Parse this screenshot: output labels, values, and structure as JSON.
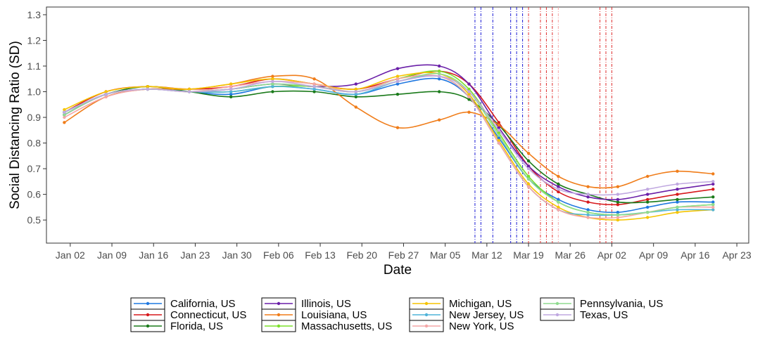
{
  "chart_data": {
    "type": "line",
    "title": "",
    "xlabel": "Date",
    "ylabel": "Social Distancing Ratio (SD)",
    "x_ticks": [
      "Jan 02",
      "Jan 09",
      "Jan 16",
      "Jan 23",
      "Jan 30",
      "Feb 06",
      "Feb 13",
      "Feb 20",
      "Feb 27",
      "Mar 05",
      "Mar 12",
      "Mar 19",
      "Mar 26",
      "Apr 02",
      "Apr 09",
      "Apr 16",
      "Apr 23"
    ],
    "y_ticks": [
      0.5,
      0.6,
      0.7,
      0.8,
      0.9,
      1.0,
      1.1,
      1.2,
      1.3
    ],
    "xlim": [
      "2019-12-29",
      "2020-04-25"
    ],
    "ylim": [
      0.41,
      1.33
    ],
    "grid": false,
    "legend_position": "bottom",
    "series": [
      {
        "name": "California, US",
        "color": "#1f78e0",
        "x": [
          "2020-01-01",
          "2020-01-08",
          "2020-01-15",
          "2020-01-22",
          "2020-01-29",
          "2020-02-05",
          "2020-02-12",
          "2020-02-19",
          "2020-02-26",
          "2020-03-04",
          "2020-03-09",
          "2020-03-14",
          "2020-03-19",
          "2020-03-24",
          "2020-03-29",
          "2020-04-03",
          "2020-04-08",
          "2020-04-13",
          "2020-04-19"
        ],
        "y": [
          0.91,
          0.99,
          1.01,
          1.0,
          0.99,
          1.02,
          1.01,
          0.99,
          1.03,
          1.05,
          0.98,
          0.82,
          0.66,
          0.58,
          0.54,
          0.53,
          0.55,
          0.57,
          0.57
        ]
      },
      {
        "name": "Connecticut, US",
        "color": "#d7191c",
        "x": [
          "2020-01-01",
          "2020-01-08",
          "2020-01-15",
          "2020-01-22",
          "2020-01-29",
          "2020-02-05",
          "2020-02-12",
          "2020-02-19",
          "2020-02-26",
          "2020-03-04",
          "2020-03-09",
          "2020-03-14",
          "2020-03-19",
          "2020-03-24",
          "2020-03-29",
          "2020-04-03",
          "2020-04-08",
          "2020-04-13",
          "2020-04-19"
        ],
        "y": [
          0.92,
          1.0,
          1.02,
          1.01,
          1.02,
          1.05,
          1.03,
          1.01,
          1.05,
          1.08,
          1.03,
          0.88,
          0.71,
          0.61,
          0.57,
          0.56,
          0.58,
          0.6,
          0.62
        ]
      },
      {
        "name": "Florida, US",
        "color": "#1a7a1a",
        "x": [
          "2020-01-01",
          "2020-01-08",
          "2020-01-15",
          "2020-01-22",
          "2020-01-29",
          "2020-02-05",
          "2020-02-12",
          "2020-02-19",
          "2020-02-26",
          "2020-03-04",
          "2020-03-09",
          "2020-03-14",
          "2020-03-19",
          "2020-03-24",
          "2020-03-29",
          "2020-04-03",
          "2020-04-08",
          "2020-04-13",
          "2020-04-19"
        ],
        "y": [
          0.92,
          0.99,
          1.02,
          1.0,
          0.98,
          1.0,
          1.0,
          0.98,
          0.99,
          1.0,
          0.97,
          0.87,
          0.73,
          0.64,
          0.6,
          0.57,
          0.57,
          0.58,
          0.59
        ]
      },
      {
        "name": "Illinois, US",
        "color": "#6a1fa8",
        "x": [
          "2020-01-01",
          "2020-01-08",
          "2020-01-15",
          "2020-01-22",
          "2020-01-29",
          "2020-02-05",
          "2020-02-12",
          "2020-02-19",
          "2020-02-26",
          "2020-03-04",
          "2020-03-09",
          "2020-03-14",
          "2020-03-19",
          "2020-03-24",
          "2020-03-29",
          "2020-04-03",
          "2020-04-08",
          "2020-04-13",
          "2020-04-19"
        ],
        "y": [
          0.91,
          0.99,
          1.01,
          1.0,
          1.01,
          1.03,
          1.02,
          1.03,
          1.09,
          1.1,
          1.03,
          0.86,
          0.71,
          0.63,
          0.59,
          0.58,
          0.6,
          0.62,
          0.64
        ]
      },
      {
        "name": "Louisiana, US",
        "color": "#f07d1a",
        "x": [
          "2020-01-01",
          "2020-01-08",
          "2020-01-15",
          "2020-01-22",
          "2020-01-29",
          "2020-02-05",
          "2020-02-12",
          "2020-02-19",
          "2020-02-26",
          "2020-03-04",
          "2020-03-09",
          "2020-03-14",
          "2020-03-19",
          "2020-03-24",
          "2020-03-29",
          "2020-04-03",
          "2020-04-08",
          "2020-04-13",
          "2020-04-19"
        ],
        "y": [
          0.88,
          0.98,
          1.01,
          1.01,
          1.03,
          1.06,
          1.05,
          0.94,
          0.86,
          0.89,
          0.92,
          0.87,
          0.76,
          0.67,
          0.63,
          0.63,
          0.67,
          0.69,
          0.68
        ]
      },
      {
        "name": "Massachusetts, US",
        "color": "#7be02a",
        "x": [
          "2020-01-01",
          "2020-01-08",
          "2020-01-15",
          "2020-01-22",
          "2020-01-29",
          "2020-02-05",
          "2020-02-12",
          "2020-02-19",
          "2020-02-26",
          "2020-03-04",
          "2020-03-09",
          "2020-03-14",
          "2020-03-19",
          "2020-03-24",
          "2020-03-29",
          "2020-04-03",
          "2020-04-08",
          "2020-04-13",
          "2020-04-19"
        ],
        "y": [
          0.92,
          0.99,
          1.01,
          1.0,
          1.0,
          1.02,
          1.02,
          1.0,
          1.05,
          1.08,
          1.01,
          0.84,
          0.67,
          0.57,
          0.53,
          0.52,
          0.53,
          0.55,
          0.56
        ]
      },
      {
        "name": "Michigan, US",
        "color": "#f5c400",
        "x": [
          "2020-01-01",
          "2020-01-08",
          "2020-01-15",
          "2020-01-22",
          "2020-01-29",
          "2020-02-05",
          "2020-02-12",
          "2020-02-19",
          "2020-02-26",
          "2020-03-04",
          "2020-03-09",
          "2020-03-14",
          "2020-03-19",
          "2020-03-24",
          "2020-03-29",
          "2020-04-03",
          "2020-04-08",
          "2020-04-13",
          "2020-04-19"
        ],
        "y": [
          0.93,
          1.0,
          1.02,
          1.01,
          1.03,
          1.05,
          1.03,
          1.01,
          1.06,
          1.07,
          0.99,
          0.81,
          0.64,
          0.55,
          0.51,
          0.5,
          0.51,
          0.53,
          0.54
        ]
      },
      {
        "name": "New Jersey, US",
        "color": "#4fb3d9",
        "x": [
          "2020-01-01",
          "2020-01-08",
          "2020-01-15",
          "2020-01-22",
          "2020-01-29",
          "2020-02-05",
          "2020-02-12",
          "2020-02-19",
          "2020-02-26",
          "2020-03-04",
          "2020-03-09",
          "2020-03-14",
          "2020-03-19",
          "2020-03-24",
          "2020-03-29",
          "2020-04-03",
          "2020-04-08",
          "2020-04-13",
          "2020-04-19"
        ],
        "y": [
          0.92,
          0.99,
          1.01,
          1.0,
          1.0,
          1.02,
          1.01,
          0.99,
          1.04,
          1.06,
          0.98,
          0.8,
          0.63,
          0.54,
          0.52,
          0.52,
          0.53,
          0.54,
          0.54
        ]
      },
      {
        "name": "New York, US",
        "color": "#f4a6a6",
        "x": [
          "2020-01-01",
          "2020-01-08",
          "2020-01-15",
          "2020-01-22",
          "2020-01-29",
          "2020-02-05",
          "2020-02-12",
          "2020-02-19",
          "2020-02-26",
          "2020-03-04",
          "2020-03-09",
          "2020-03-14",
          "2020-03-19",
          "2020-03-24",
          "2020-03-29",
          "2020-04-03",
          "2020-04-08",
          "2020-04-13",
          "2020-04-19"
        ],
        "y": [
          0.9,
          0.98,
          1.01,
          1.0,
          1.02,
          1.04,
          1.03,
          1.0,
          1.05,
          1.06,
          0.98,
          0.8,
          0.63,
          0.54,
          0.51,
          0.51,
          0.53,
          0.55,
          0.55
        ]
      },
      {
        "name": "Pennsylvania, US",
        "color": "#8fdc8f",
        "x": [
          "2020-01-01",
          "2020-01-08",
          "2020-01-15",
          "2020-01-22",
          "2020-01-29",
          "2020-02-05",
          "2020-02-12",
          "2020-02-19",
          "2020-02-26",
          "2020-03-04",
          "2020-03-09",
          "2020-03-14",
          "2020-03-19",
          "2020-03-24",
          "2020-03-29",
          "2020-04-03",
          "2020-04-08",
          "2020-04-13",
          "2020-04-19"
        ],
        "y": [
          0.91,
          0.99,
          1.01,
          1.0,
          1.01,
          1.03,
          1.02,
          1.0,
          1.04,
          1.07,
          1.0,
          0.83,
          0.66,
          0.57,
          0.53,
          0.52,
          0.53,
          0.55,
          0.56
        ]
      },
      {
        "name": "Texas, US",
        "color": "#c0a8e0",
        "x": [
          "2020-01-01",
          "2020-01-08",
          "2020-01-15",
          "2020-01-22",
          "2020-01-29",
          "2020-02-05",
          "2020-02-12",
          "2020-02-19",
          "2020-02-26",
          "2020-03-04",
          "2020-03-09",
          "2020-03-14",
          "2020-03-19",
          "2020-03-24",
          "2020-03-29",
          "2020-04-03",
          "2020-04-08",
          "2020-04-13",
          "2020-04-19"
        ],
        "y": [
          0.92,
          0.99,
          1.01,
          1.0,
          1.01,
          1.04,
          1.02,
          1.0,
          1.04,
          1.06,
          1.0,
          0.85,
          0.7,
          0.62,
          0.6,
          0.6,
          0.62,
          0.64,
          0.65
        ]
      }
    ],
    "vertical_lines": [
      {
        "x": "2020-03-10",
        "color": "#1a1ad6"
      },
      {
        "x": "2020-03-11",
        "color": "#1a1ad6"
      },
      {
        "x": "2020-03-13",
        "color": "#1a1ad6"
      },
      {
        "x": "2020-03-16",
        "color": "#1a1ad6"
      },
      {
        "x": "2020-03-17",
        "color": "#1a1ad6"
      },
      {
        "x": "2020-03-18",
        "color": "#1a1ad6"
      },
      {
        "x": "2020-03-19",
        "color": "#e03030"
      },
      {
        "x": "2020-03-21",
        "color": "#e03030"
      },
      {
        "x": "2020-03-22",
        "color": "#e03030"
      },
      {
        "x": "2020-03-23",
        "color": "#e03030"
      },
      {
        "x": "2020-03-24",
        "color": "#f4a6a6"
      },
      {
        "x": "2020-03-31",
        "color": "#e03030"
      },
      {
        "x": "2020-04-01",
        "color": "#e03030"
      },
      {
        "x": "2020-04-02",
        "color": "#e03030"
      }
    ]
  }
}
